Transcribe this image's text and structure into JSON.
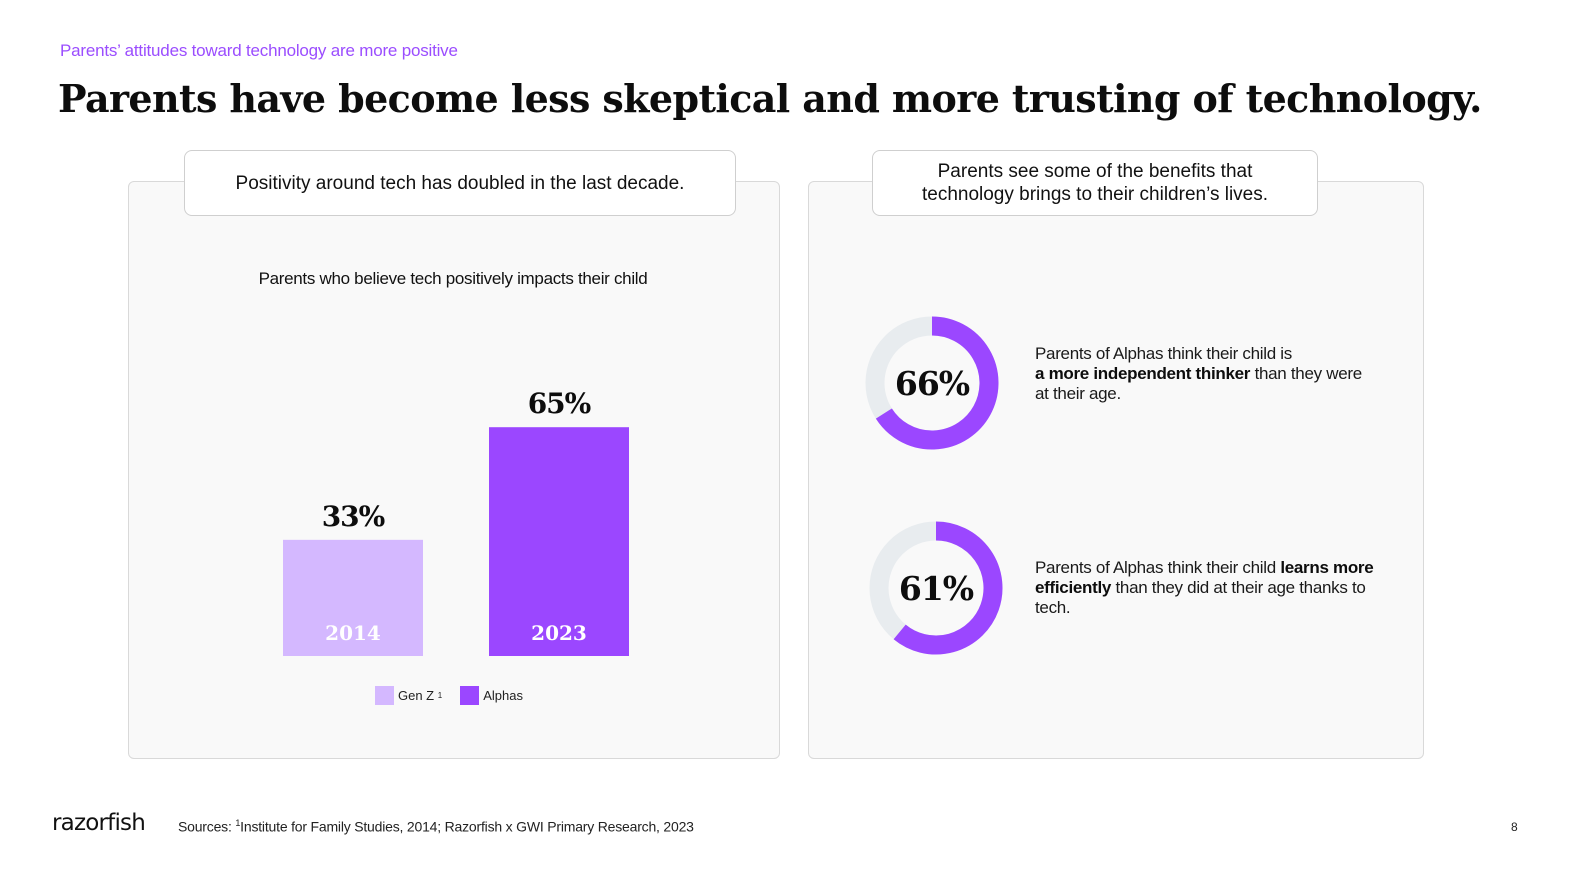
{
  "header": {
    "eyebrow": "Parents’ attitudes toward technology are more positive",
    "title": "Parents have become less skeptical and more trusting of technology."
  },
  "left_panel": {
    "callout": "Positivity around tech has doubled in the last decade.",
    "chart_subtitle": "Parents who believe tech positively impacts their child",
    "legend": [
      {
        "label": "Gen Z",
        "superscript": "1",
        "color": "#d4b8ff"
      },
      {
        "label": "Alphas",
        "color": "#9b47ff"
      }
    ]
  },
  "right_panel": {
    "callout": "Parents see some of the benefits that technology brings to their children’s lives.",
    "stats": [
      {
        "value_label": "66%",
        "text_before": "Parents of Alphas think their child is",
        "text_bold": "a more independent thinker",
        "text_after": "than they were at their age."
      },
      {
        "value_label": "61%",
        "text_before": "Parents of Alphas think their child",
        "text_bold": "learns more efficiently",
        "text_after": "than they did at their age thanks to tech."
      }
    ]
  },
  "footer": {
    "logo": "razorfish",
    "sources_prefix": "Sources:",
    "sources_sup": "1",
    "sources_text": "Institute for Family Studies, 2014; Razorfish x GWI Primary Research, 2023",
    "page_number": "8"
  },
  "colors": {
    "accent": "#9b4dff",
    "genz": "#d4b8ff",
    "alphas": "#9b47ff",
    "donut_track": "#e8ecef"
  },
  "chart_data": [
    {
      "type": "bar",
      "title": "Parents who believe tech positively impacts their child",
      "categories": [
        "2014",
        "2023"
      ],
      "values": [
        33,
        65
      ],
      "value_labels": [
        "33%",
        "65%"
      ],
      "series": [
        {
          "name": "Gen Z",
          "values": [
            33,
            null
          ]
        },
        {
          "name": "Alphas",
          "values": [
            null,
            65
          ]
        }
      ],
      "ylim": [
        0,
        100
      ],
      "grid": false,
      "legend_position": "bottom"
    },
    {
      "type": "pie",
      "style": "donut",
      "values": [
        66,
        34
      ],
      "value_label": "66%"
    },
    {
      "type": "pie",
      "style": "donut",
      "values": [
        61,
        39
      ],
      "value_label": "61%"
    }
  ]
}
